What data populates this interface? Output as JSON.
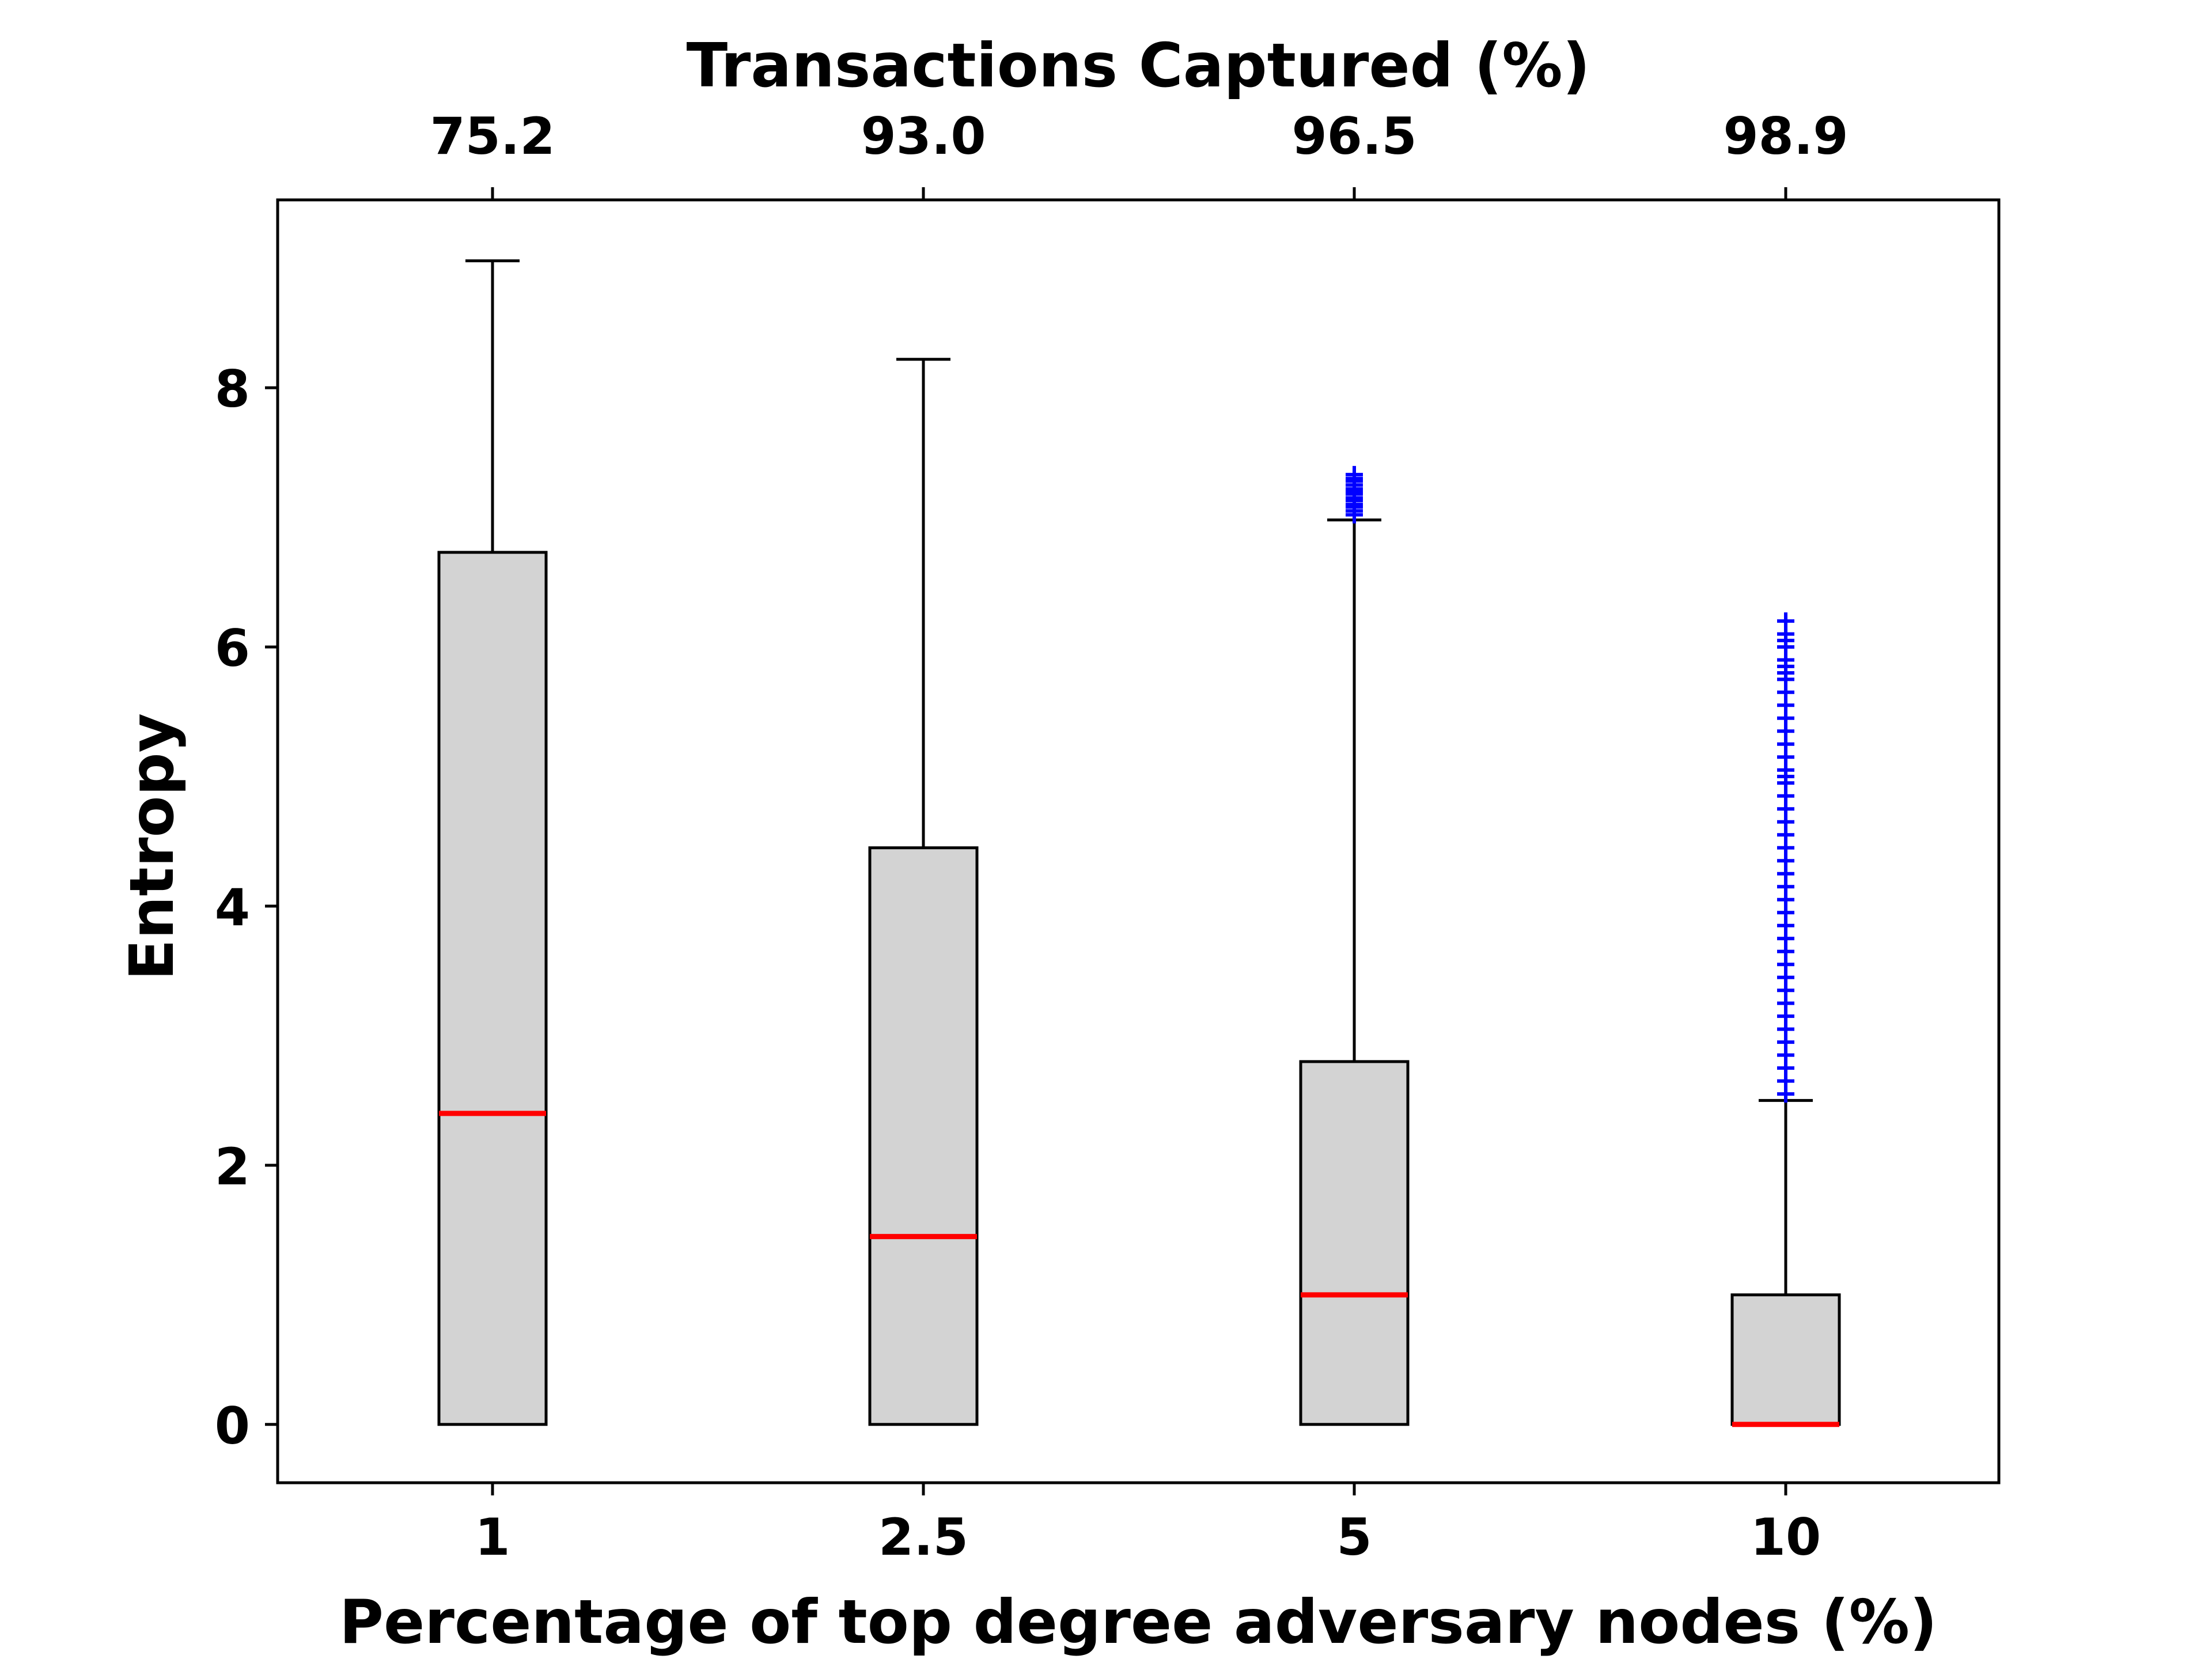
{
  "chart_data": {
    "type": "box",
    "title": "",
    "xlabel": "Percentage of top degree adversary nodes (%)",
    "ylabel": "Entropy",
    "top_xlabel": "Transactions Captured (%)",
    "categories": [
      "1",
      "2.5",
      "5",
      "10"
    ],
    "top_tick_labels": [
      "75.2",
      "93.0",
      "96.5",
      "98.9"
    ],
    "yticks": [
      0,
      2,
      4,
      6,
      8
    ],
    "ylim": [
      -0.45,
      9.45
    ],
    "grid": false,
    "legend": "none",
    "colors": {
      "box_fill": "#d3d3d3",
      "box_edge": "#000000",
      "median": "#ff0000",
      "outlier": "#0000ff"
    },
    "boxes": [
      {
        "category": "1",
        "whisker_low": 0,
        "q1": 0,
        "median": 2.4,
        "q3": 6.73,
        "whisker_high": 8.98,
        "outliers": []
      },
      {
        "category": "2.5",
        "whisker_low": 0,
        "q1": 0,
        "median": 1.45,
        "q3": 4.45,
        "whisker_high": 8.22,
        "outliers": []
      },
      {
        "category": "5",
        "whisker_low": 0,
        "q1": 0,
        "median": 1.0,
        "q3": 2.8,
        "whisker_high": 6.98,
        "outliers": [
          7.02,
          7.05,
          7.08,
          7.1,
          7.13,
          7.15,
          7.18,
          7.2,
          7.22,
          7.25,
          7.28,
          7.3,
          7.33
        ]
      },
      {
        "category": "10",
        "whisker_low": 0,
        "q1": 0,
        "median": 0.0,
        "q3": 1.0,
        "whisker_high": 2.5,
        "outliers": [
          2.55,
          2.65,
          2.75,
          2.85,
          2.95,
          3.05,
          3.15,
          3.25,
          3.35,
          3.45,
          3.55,
          3.65,
          3.75,
          3.85,
          3.95,
          4.05,
          4.15,
          4.25,
          4.35,
          4.45,
          4.55,
          4.65,
          4.75,
          4.85,
          4.95,
          5.0,
          5.05,
          5.15,
          5.25,
          5.35,
          5.45,
          5.55,
          5.65,
          5.75,
          5.8,
          5.85,
          5.9,
          6.0,
          6.05,
          6.1,
          6.2
        ]
      }
    ]
  }
}
